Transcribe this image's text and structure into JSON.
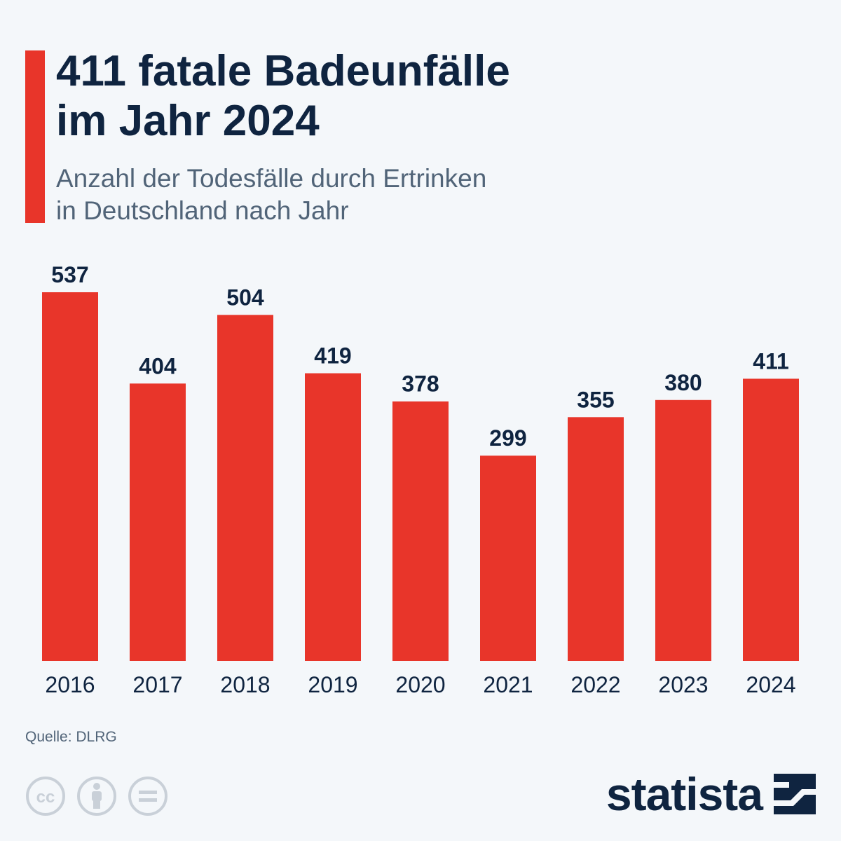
{
  "header": {
    "title_line1": "411 fatale Badeunfälle",
    "title_line2": "im Jahr 2024",
    "subtitle_line1": "Anzahl der Todesfälle durch Ertrinken",
    "subtitle_line2": "in Deutschland nach Jahr"
  },
  "footer": {
    "source": "Quelle: DLRG",
    "license_icons": [
      "cc-icon",
      "attribution-icon",
      "no-derivatives-icon"
    ],
    "license_cc_text": "cc",
    "logo_text": "statista"
  },
  "colors": {
    "bar": "#e8352a",
    "accent": "#e8352a",
    "title": "#0f2440",
    "subtitle": "#516478",
    "background": "#f4f7fa",
    "license_icon": "#c9d0d8"
  },
  "chart_data": {
    "type": "bar",
    "categories": [
      "2016",
      "2017",
      "2018",
      "2019",
      "2020",
      "2021",
      "2022",
      "2023",
      "2024"
    ],
    "values": [
      537,
      404,
      504,
      419,
      378,
      299,
      355,
      380,
      411
    ],
    "title": "411 fatale Badeunfälle im Jahr 2024",
    "subtitle": "Anzahl der Todesfälle durch Ertrinken in Deutschland nach Jahr",
    "xlabel": "",
    "ylabel": "",
    "ylim": [
      0,
      537
    ],
    "grid": false,
    "legend": "none",
    "data_labels": true
  }
}
